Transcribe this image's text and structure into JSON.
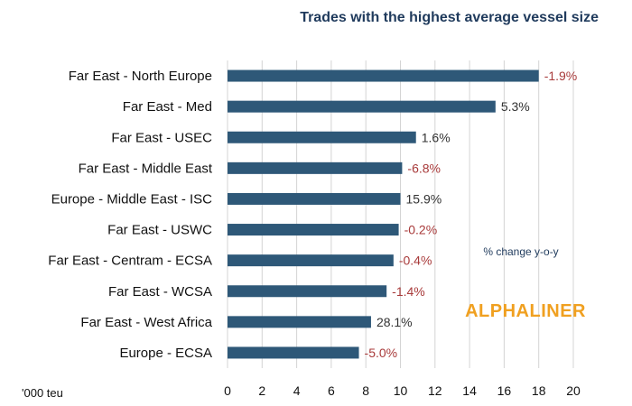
{
  "chart_data": {
    "type": "bar",
    "orientation": "horizontal",
    "title": "Trades with the highest average vessel size",
    "unit_label": "'000 teu",
    "annotation": "% change y-o-y",
    "brand": "ALPHALINER",
    "categories": [
      "Far East - North Europe",
      "Far East - Med",
      "Far East - USEC",
      "Far East - Middle East",
      "Europe - Middle East - ISC",
      "Far East - USWC",
      "Far East - Centram - ECSA",
      "Far East - WCSA",
      "Far East - West Africa",
      "Europe - ECSA"
    ],
    "values": [
      18.0,
      15.5,
      10.9,
      10.1,
      10.0,
      9.9,
      9.6,
      9.2,
      8.3,
      7.6
    ],
    "change_labels": [
      "-1.9%",
      "5.3%",
      "1.6%",
      "-6.8%",
      "15.9%",
      "-0.2%",
      "-0.4%",
      "-1.4%",
      "28.1%",
      "-5.0%"
    ],
    "xlim": [
      0,
      20
    ],
    "xticks": [
      0,
      2,
      4,
      6,
      8,
      10,
      12,
      14,
      16,
      18,
      20
    ],
    "grid": true,
    "colors": {
      "bar": "#2e5878",
      "negative": "#a83a3a",
      "positive": "#333333",
      "title": "#1f3a5c",
      "annotation": "#1f3a5c",
      "brand": "#f0a020",
      "grid": "#d4d4d4",
      "text": "#111111"
    }
  }
}
